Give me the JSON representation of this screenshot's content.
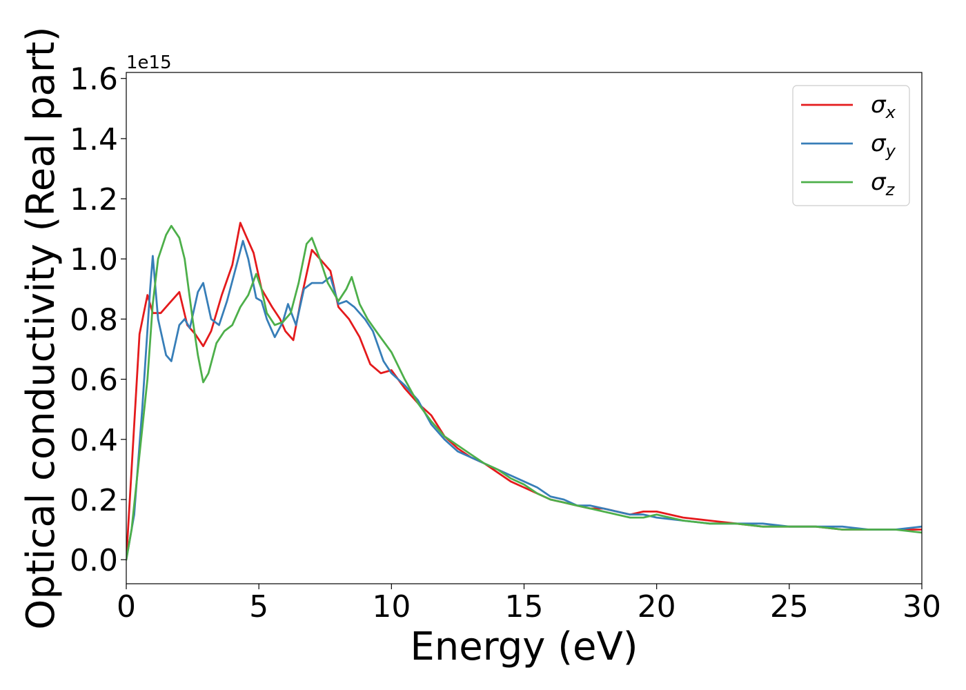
{
  "chart_data": {
    "type": "line",
    "title": "",
    "xlabel": "Energy (eV)",
    "ylabel": "Optical conductivity (Real part)",
    "y_offset_text": "1e15",
    "xlim": [
      0,
      30
    ],
    "ylim": [
      -0.08,
      1.62
    ],
    "xticks": [
      0,
      5,
      10,
      15,
      20,
      25,
      30
    ],
    "xtick_labels": [
      "0",
      "5",
      "10",
      "15",
      "20",
      "25",
      "30"
    ],
    "yticks": [
      0.0,
      0.2,
      0.4,
      0.6,
      0.8,
      1.0,
      1.2,
      1.4,
      1.6
    ],
    "ytick_labels": [
      "0.0",
      "0.2",
      "0.4",
      "0.6",
      "0.8",
      "1.0",
      "1.2",
      "1.4",
      "1.6"
    ],
    "grid": false,
    "legend_position": "top-right",
    "series": [
      {
        "name": "σx",
        "legend_symbol": "σ",
        "legend_sub": "x",
        "color": "#e41a1c",
        "x": [
          0,
          0.2,
          0.5,
          0.8,
          1.0,
          1.3,
          1.6,
          2.0,
          2.3,
          2.6,
          2.9,
          3.2,
          3.6,
          4.0,
          4.3,
          4.5,
          4.8,
          5.1,
          5.5,
          5.8,
          6.0,
          6.3,
          6.6,
          7.0,
          7.3,
          7.7,
          8.0,
          8.4,
          8.8,
          9.2,
          9.6,
          10.0,
          10.5,
          11.0,
          11.5,
          12.0,
          12.5,
          13.0,
          13.5,
          14.0,
          14.5,
          15.0,
          15.5,
          16.0,
          16.5,
          17.0,
          17.5,
          18.0,
          18.5,
          19.0,
          19.5,
          20.0,
          20.5,
          21.0,
          22.0,
          23.0,
          24.0,
          25.0,
          26.0,
          27.0,
          28.0,
          29.0,
          30.0
        ],
        "y": [
          0.0,
          0.3,
          0.75,
          0.88,
          0.82,
          0.82,
          0.85,
          0.89,
          0.78,
          0.75,
          0.71,
          0.76,
          0.88,
          0.98,
          1.12,
          1.08,
          1.02,
          0.9,
          0.84,
          0.8,
          0.76,
          0.73,
          0.87,
          1.03,
          1.0,
          0.96,
          0.84,
          0.8,
          0.74,
          0.65,
          0.62,
          0.63,
          0.57,
          0.52,
          0.48,
          0.41,
          0.37,
          0.34,
          0.32,
          0.29,
          0.26,
          0.24,
          0.22,
          0.2,
          0.19,
          0.18,
          0.17,
          0.17,
          0.16,
          0.15,
          0.16,
          0.16,
          0.15,
          0.14,
          0.13,
          0.12,
          0.11,
          0.11,
          0.11,
          0.1,
          0.1,
          0.1,
          0.1
        ]
      },
      {
        "name": "σy",
        "legend_symbol": "σ",
        "legend_sub": "y",
        "color": "#377eb8",
        "x": [
          0,
          0.3,
          0.6,
          0.9,
          1.0,
          1.2,
          1.5,
          1.7,
          2.0,
          2.2,
          2.4,
          2.7,
          2.9,
          3.2,
          3.5,
          3.8,
          4.1,
          4.4,
          4.6,
          4.9,
          5.1,
          5.3,
          5.6,
          5.9,
          6.1,
          6.4,
          6.7,
          7.0,
          7.4,
          7.7,
          8.0,
          8.3,
          8.6,
          9.0,
          9.3,
          9.7,
          10.0,
          10.5,
          11.0,
          11.5,
          12.0,
          12.5,
          13.0,
          13.5,
          14.0,
          14.5,
          15.0,
          15.5,
          16.0,
          16.5,
          17.0,
          17.5,
          18.0,
          18.5,
          19.0,
          19.5,
          20.0,
          21.0,
          22.0,
          23.0,
          24.0,
          25.0,
          26.0,
          27.0,
          28.0,
          29.0,
          30.0
        ],
        "y": [
          0.0,
          0.15,
          0.5,
          0.9,
          1.01,
          0.8,
          0.68,
          0.66,
          0.78,
          0.8,
          0.77,
          0.89,
          0.92,
          0.8,
          0.78,
          0.86,
          0.96,
          1.06,
          1.0,
          0.87,
          0.86,
          0.8,
          0.74,
          0.79,
          0.85,
          0.78,
          0.9,
          0.92,
          0.92,
          0.94,
          0.85,
          0.86,
          0.84,
          0.8,
          0.76,
          0.66,
          0.62,
          0.58,
          0.53,
          0.45,
          0.4,
          0.36,
          0.34,
          0.32,
          0.3,
          0.28,
          0.26,
          0.24,
          0.21,
          0.2,
          0.18,
          0.18,
          0.17,
          0.16,
          0.15,
          0.15,
          0.14,
          0.13,
          0.12,
          0.12,
          0.12,
          0.11,
          0.11,
          0.11,
          0.1,
          0.1,
          0.11
        ]
      },
      {
        "name": "σz",
        "legend_symbol": "σ",
        "legend_sub": "z",
        "color": "#4daf4a",
        "x": [
          0,
          0.2,
          0.5,
          0.8,
          1.0,
          1.2,
          1.5,
          1.7,
          2.0,
          2.2,
          2.5,
          2.7,
          2.9,
          3.1,
          3.4,
          3.7,
          4.0,
          4.3,
          4.6,
          4.9,
          5.1,
          5.3,
          5.6,
          5.9,
          6.2,
          6.5,
          6.8,
          7.0,
          7.3,
          7.6,
          8.0,
          8.3,
          8.5,
          8.8,
          9.1,
          9.5,
          10.0,
          10.5,
          11.0,
          11.5,
          12.0,
          12.5,
          13.0,
          13.5,
          14.0,
          14.5,
          15.0,
          15.5,
          16.0,
          16.5,
          17.0,
          17.5,
          18.0,
          18.5,
          19.0,
          19.5,
          20.0,
          21.0,
          22.0,
          23.0,
          24.0,
          25.0,
          26.0,
          27.0,
          28.0,
          29.0,
          30.0
        ],
        "y": [
          0.0,
          0.1,
          0.35,
          0.6,
          0.85,
          1.0,
          1.08,
          1.11,
          1.07,
          1.0,
          0.8,
          0.68,
          0.59,
          0.62,
          0.72,
          0.76,
          0.78,
          0.84,
          0.88,
          0.95,
          0.9,
          0.82,
          0.78,
          0.79,
          0.82,
          0.92,
          1.05,
          1.07,
          1.0,
          0.92,
          0.86,
          0.9,
          0.94,
          0.85,
          0.8,
          0.75,
          0.69,
          0.6,
          0.52,
          0.46,
          0.41,
          0.38,
          0.35,
          0.32,
          0.3,
          0.27,
          0.25,
          0.22,
          0.2,
          0.19,
          0.18,
          0.17,
          0.16,
          0.15,
          0.14,
          0.14,
          0.15,
          0.13,
          0.12,
          0.12,
          0.11,
          0.11,
          0.11,
          0.1,
          0.1,
          0.1,
          0.09
        ]
      }
    ]
  }
}
